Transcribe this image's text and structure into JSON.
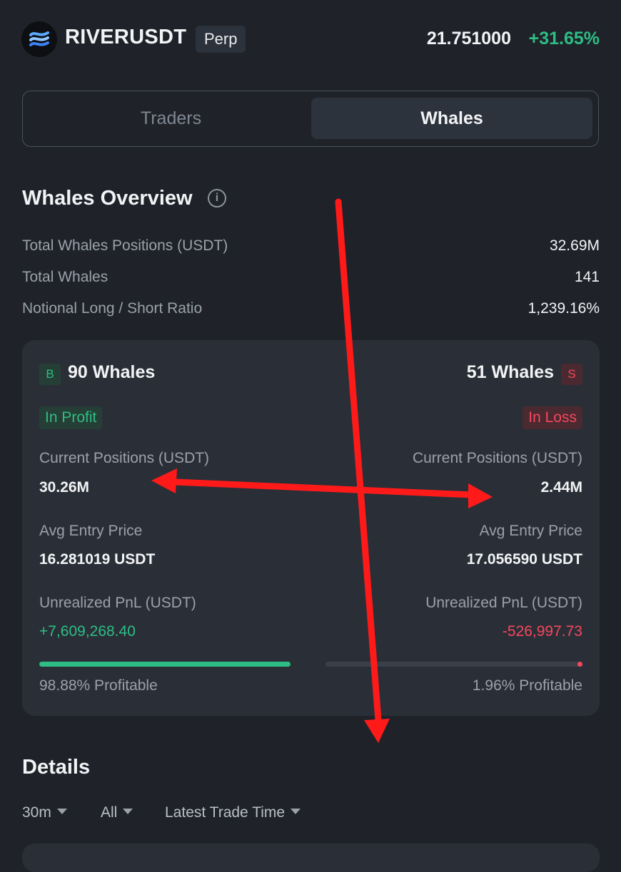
{
  "header": {
    "symbol": "RIVERUSDT",
    "badge": "Perp",
    "price": "21.751000",
    "change": "+31.65%"
  },
  "tabs": [
    {
      "label": "Traders",
      "active": false
    },
    {
      "label": "Whales",
      "active": true
    }
  ],
  "overview": {
    "title": "Whales Overview",
    "info_icon": "info-icon",
    "stats": [
      {
        "label": "Total Whales Positions (USDT)",
        "value": "32.69M"
      },
      {
        "label": "Total Whales",
        "value": "141"
      },
      {
        "label": "Notional Long / Short Ratio",
        "value": "1,239.16%"
      }
    ]
  },
  "card": {
    "long": {
      "badge": "B",
      "count": "90 Whales",
      "status": "In Profit",
      "positions_label": "Current Positions (USDT)",
      "positions_value": "30.26M",
      "entry_label": "Avg Entry Price",
      "entry_value": "16.281019 USDT",
      "pnl_label": "Unrealized PnL (USDT)",
      "pnl_value": "+7,609,268.40",
      "profitable": "98.88% Profitable",
      "profitable_pct": 98.88
    },
    "short": {
      "badge": "S",
      "count": "51 Whales",
      "status": "In Loss",
      "positions_label": "Current Positions (USDT)",
      "positions_value": "2.44M",
      "entry_label": "Avg Entry Price",
      "entry_value": "17.056590 USDT",
      "pnl_label": "Unrealized PnL (USDT)",
      "pnl_value": "-526,997.73",
      "profitable": "1.96% Profitable",
      "profitable_pct": 1.96
    }
  },
  "details": {
    "title": "Details",
    "filters": [
      "30m",
      "All",
      "Latest Trade Time"
    ]
  },
  "colors": {
    "background": "#1f2329",
    "card": "#2a2f37",
    "green": "#2ebd85",
    "red": "#f6465d",
    "annotation": "#ff1a1a"
  }
}
